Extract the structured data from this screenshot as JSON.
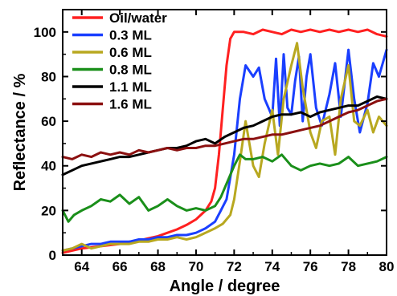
{
  "chart_data": {
    "type": "line",
    "xlabel": "Angle / degree",
    "ylabel": "Reflectance / %",
    "xlim": [
      63,
      80
    ],
    "ylim": [
      0,
      110
    ],
    "xticks": [
      64,
      66,
      68,
      70,
      72,
      74,
      76,
      78,
      80
    ],
    "xtick_labels": [
      "64",
      "66",
      "68",
      "70",
      "72",
      "74",
      "76",
      "78",
      "80"
    ],
    "yticks": [
      0,
      20,
      40,
      60,
      80,
      100
    ],
    "ytick_labels": [
      "0",
      "20",
      "40",
      "60",
      "80",
      "100"
    ],
    "grid": false,
    "legend_position": "top-left",
    "series": [
      {
        "name": "Oil/water",
        "color": "#ff2020",
        "x": [
          63.0,
          63.5,
          64.0,
          64.5,
          65.0,
          65.5,
          66.0,
          66.5,
          67.0,
          67.5,
          68.0,
          68.5,
          69.0,
          69.5,
          70.0,
          70.5,
          70.8,
          71.0,
          71.2,
          71.4,
          71.6,
          71.8,
          72.0,
          72.2,
          72.5,
          73.0,
          73.5,
          74.0,
          74.5,
          75.0,
          75.5,
          76.0,
          76.5,
          77.0,
          77.5,
          78.0,
          78.5,
          79.0,
          79.5,
          80.0
        ],
        "y": [
          1,
          2,
          3,
          3.5,
          4,
          4.5,
          5,
          6,
          6.5,
          7.5,
          8.5,
          10,
          11.5,
          13.5,
          16,
          20,
          24,
          30,
          45,
          65,
          85,
          97,
          100,
          100,
          100,
          99,
          101,
          100,
          99,
          101,
          100,
          101,
          100,
          101,
          100,
          101,
          100,
          101,
          99,
          98
        ]
      },
      {
        "name": "0.3 ML",
        "color": "#1a3fff",
        "x": [
          63.0,
          63.5,
          64.0,
          64.5,
          65.0,
          65.5,
          66.0,
          66.5,
          67.0,
          67.5,
          68.0,
          68.5,
          69.0,
          69.5,
          70.0,
          70.5,
          71.0,
          71.3,
          71.6,
          72.0,
          72.3,
          72.6,
          73.0,
          73.3,
          73.6,
          74.0,
          74.2,
          74.4,
          74.6,
          74.8,
          75.0,
          75.2,
          75.4,
          75.6,
          75.8,
          76.0,
          76.3,
          76.6,
          77.0,
          77.3,
          77.6,
          78.0,
          78.3,
          78.6,
          79.0,
          79.3,
          79.6,
          80.0
        ],
        "y": [
          2,
          3,
          4,
          5,
          5,
          6,
          6,
          6,
          7,
          7,
          8,
          8,
          9,
          9,
          10,
          12,
          15,
          20,
          25,
          45,
          70,
          85,
          80,
          84,
          70,
          62,
          88,
          58,
          90,
          66,
          63,
          78,
          89,
          60,
          80,
          90,
          66,
          58,
          72,
          86,
          62,
          92,
          70,
          55,
          68,
          86,
          80,
          92
        ]
      },
      {
        "name": "0.6 ML",
        "color": "#b8a820",
        "x": [
          63.0,
          63.5,
          64.0,
          64.5,
          65.0,
          65.5,
          66.0,
          66.5,
          67.0,
          67.5,
          68.0,
          68.5,
          69.0,
          69.5,
          70.0,
          70.5,
          71.0,
          71.4,
          71.8,
          72.0,
          72.3,
          72.6,
          73.0,
          73.3,
          73.6,
          74.0,
          74.3,
          74.6,
          75.0,
          75.3,
          75.6,
          76.0,
          76.3,
          76.6,
          77.0,
          77.3,
          77.6,
          78.0,
          78.3,
          78.6,
          79.0,
          79.3,
          79.6,
          80.0
        ],
        "y": [
          2,
          3,
          5,
          3,
          4,
          5,
          5,
          5,
          6,
          6,
          7,
          7,
          8,
          7,
          8,
          10,
          12,
          14,
          18,
          25,
          42,
          60,
          40,
          35,
          50,
          65,
          45,
          70,
          85,
          95,
          75,
          55,
          48,
          60,
          62,
          45,
          70,
          85,
          60,
          58,
          65,
          55,
          62,
          58
        ]
      },
      {
        "name": "0.8 ML",
        "color": "#1a8f1a",
        "x": [
          63.0,
          63.3,
          63.6,
          64.0,
          64.5,
          65.0,
          65.5,
          66.0,
          66.5,
          67.0,
          67.5,
          68.0,
          68.5,
          69.0,
          69.5,
          70.0,
          70.5,
          71.0,
          71.3,
          71.6,
          72.0,
          72.3,
          72.6,
          73.0,
          73.5,
          74.0,
          74.5,
          75.0,
          75.5,
          76.0,
          76.5,
          77.0,
          77.5,
          78.0,
          78.5,
          79.0,
          79.5,
          80.0
        ],
        "y": [
          20,
          15,
          18,
          20,
          22,
          25,
          24,
          27,
          23,
          26,
          20,
          22,
          25,
          22,
          20,
          21,
          20,
          22,
          26,
          32,
          40,
          45,
          43,
          43,
          44,
          42,
          45,
          40,
          38,
          40,
          41,
          40,
          41,
          44,
          40,
          41,
          42,
          44
        ]
      },
      {
        "name": "1.1 ML",
        "color": "#000000",
        "x": [
          63.0,
          63.5,
          64.0,
          64.5,
          65.0,
          65.5,
          66.0,
          66.5,
          67.0,
          67.5,
          68.0,
          68.5,
          69.0,
          69.5,
          70.0,
          70.5,
          71.0,
          71.5,
          72.0,
          72.5,
          73.0,
          73.5,
          74.0,
          74.5,
          75.0,
          75.5,
          76.0,
          76.5,
          77.0,
          77.5,
          78.0,
          78.5,
          79.0,
          79.5,
          80.0
        ],
        "y": [
          36,
          38,
          40,
          41,
          42,
          43,
          44,
          44,
          45,
          46,
          47,
          48,
          48,
          49,
          51,
          52,
          50,
          53,
          55,
          57,
          58,
          60,
          62,
          63,
          63,
          64,
          62,
          64,
          65,
          66,
          67,
          67,
          69,
          71,
          70
        ]
      },
      {
        "name": "1.6 ML",
        "color": "#8b1010",
        "x": [
          63.0,
          63.5,
          64.0,
          64.5,
          65.0,
          65.5,
          66.0,
          66.5,
          67.0,
          67.5,
          68.0,
          68.5,
          69.0,
          69.5,
          70.0,
          70.5,
          71.0,
          71.5,
          72.0,
          72.5,
          73.0,
          73.5,
          74.0,
          74.5,
          75.0,
          75.5,
          76.0,
          76.5,
          77.0,
          77.5,
          78.0,
          78.5,
          79.0,
          79.5,
          80.0
        ],
        "y": [
          44,
          43,
          45,
          44,
          46,
          45,
          46,
          45,
          47,
          46,
          47,
          48,
          47,
          48,
          48,
          49,
          49,
          50,
          51,
          52,
          52,
          53,
          54,
          54,
          55,
          56,
          57,
          58,
          60,
          62,
          64,
          65,
          67,
          69,
          70
        ]
      }
    ]
  }
}
